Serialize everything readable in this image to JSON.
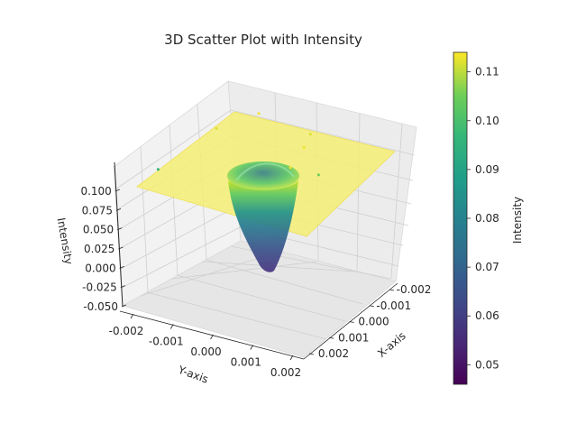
{
  "chart_data": {
    "type": "scatter",
    "title": "3D Scatter Plot with Intensity",
    "xlabel": "X-axis",
    "ylabel": "Y-axis",
    "zlabel": "Intensity",
    "xlim": [
      -0.0025,
      0.0025
    ],
    "ylim": [
      -0.0025,
      0.0025
    ],
    "zlim": [
      -0.05,
      0.12
    ],
    "x_ticks": [
      "-0.002",
      "-0.001",
      "0.000",
      "0.001",
      "0.002"
    ],
    "y_ticks": [
      "-0.002",
      "-0.001",
      "0.000",
      "0.001",
      "0.002"
    ],
    "z_ticks": [
      "0.100",
      "0.075",
      "0.050",
      "0.025",
      "0.000",
      "-0.025",
      "-0.050"
    ],
    "colorbar": {
      "label": "Intensity",
      "colormap": "viridis",
      "range": [
        0.046,
        0.114
      ],
      "ticks": [
        "0.11",
        "0.10",
        "0.09",
        "0.08",
        "0.07",
        "0.06",
        "0.05"
      ]
    },
    "plane": {
      "z": 0.114,
      "color": "#f6ee74"
    },
    "well": {
      "center": [
        0.0,
        0.0
      ],
      "min_z": -0.02,
      "rim_z": 0.114
    },
    "points": [
      {
        "x": -0.0012,
        "y": 0.0006,
        "z": 0.112
      },
      {
        "x": -0.0004,
        "y": 0.0009,
        "z": 0.113
      },
      {
        "x": 0.0008,
        "y": 0.0012,
        "z": 0.113
      },
      {
        "x": -0.0015,
        "y": -0.0012,
        "z": 0.113
      },
      {
        "x": -0.0002,
        "y": -0.0016,
        "z": 0.112
      },
      {
        "x": 0.0019,
        "y": -0.0019,
        "z": 0.095
      },
      {
        "x": 0.0004,
        "y": 0.0018,
        "z": 0.105
      }
    ]
  }
}
